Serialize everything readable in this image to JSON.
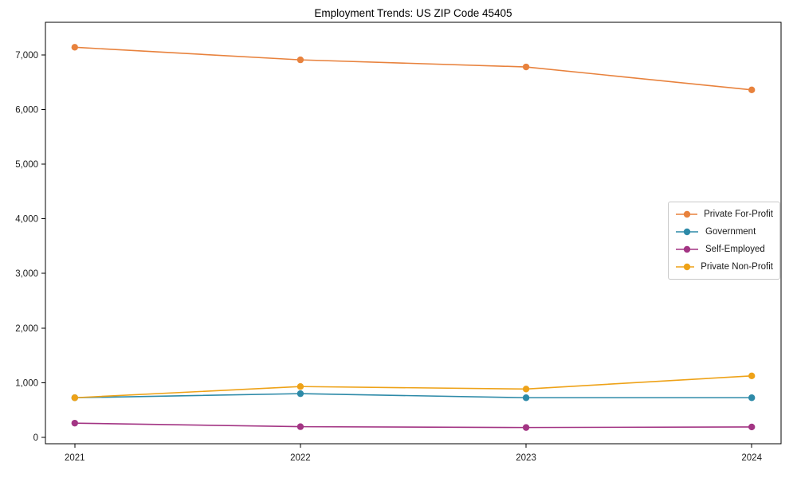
{
  "page": {
    "background": "#ffffff"
  },
  "chart_data": {
    "type": "line",
    "title": "Employment Trends: US ZIP Code 45405",
    "x": [
      2021,
      2022,
      2023,
      2024
    ],
    "xtick_labels": [
      "2021",
      "2022",
      "2023",
      "2024"
    ],
    "ytick_values": [
      0,
      1000,
      2000,
      3000,
      4000,
      5000,
      6000,
      7000
    ],
    "ytick_labels": [
      "0",
      "1,000",
      "2,000",
      "3,000",
      "4,000",
      "5,000",
      "6,000",
      "7,000"
    ],
    "series": [
      {
        "name": "Private For-Profit",
        "color": "#e8823d",
        "values": [
          7140,
          6910,
          6780,
          6360
        ]
      },
      {
        "name": "Government",
        "color": "#2d8aa8",
        "values": [
          725,
          800,
          725,
          725
        ]
      },
      {
        "name": "Self-Employed",
        "color": "#a33584",
        "values": [
          260,
          195,
          180,
          190
        ]
      },
      {
        "name": "Private Non-Profit",
        "color": "#eea218",
        "values": [
          725,
          930,
          885,
          1125
        ]
      }
    ],
    "xlim": [
      2020.87,
      2024.13
    ],
    "ylim": [
      -117,
      7597
    ],
    "xlabel": "",
    "ylabel": "",
    "grid": false,
    "marker": "circle",
    "legend_position": "center right",
    "axis_color": "#000000",
    "text_color": "#1a1a1a"
  }
}
